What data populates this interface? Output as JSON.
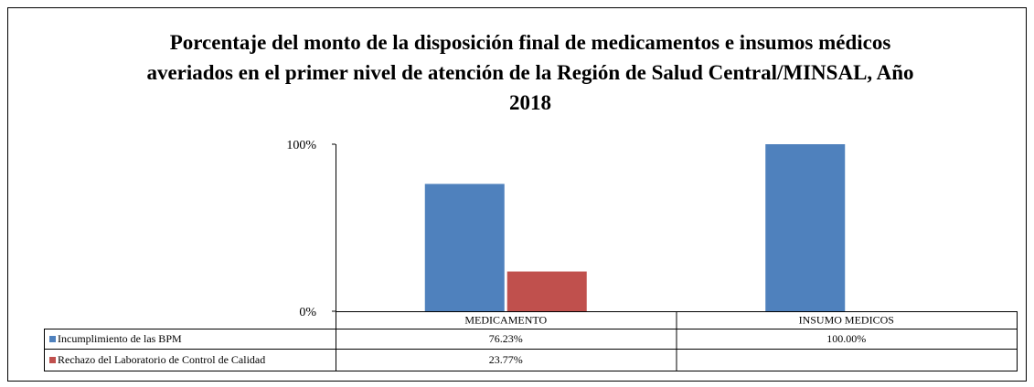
{
  "chart_data": {
    "type": "bar",
    "title": "Porcentaje del monto de la disposición final de medicamentos e insumos médicos averiados en el primer nivel de atención de la Región de Salud Central/MINSAL, Año 2018",
    "categories": [
      "MEDICAMENTO",
      "INSUMO MEDICOS"
    ],
    "series": [
      {
        "name": "Incumplimiento de las BPM",
        "color": "#4f81bd",
        "values": [
          76.23,
          100
        ],
        "value_labels": [
          "76.23%",
          "100.00%"
        ]
      },
      {
        "name": "Rechazo del Laboratorio de Control de Calidad",
        "color": "#c0504d",
        "values": [
          23.77,
          null
        ],
        "value_labels": [
          "23.77%",
          null
        ]
      }
    ],
    "ylim": [
      0,
      100
    ],
    "yticks": [
      {
        "value": 0,
        "label": "0%"
      },
      {
        "value": 100,
        "label": "100%"
      }
    ],
    "grid": false,
    "data_table": true
  }
}
